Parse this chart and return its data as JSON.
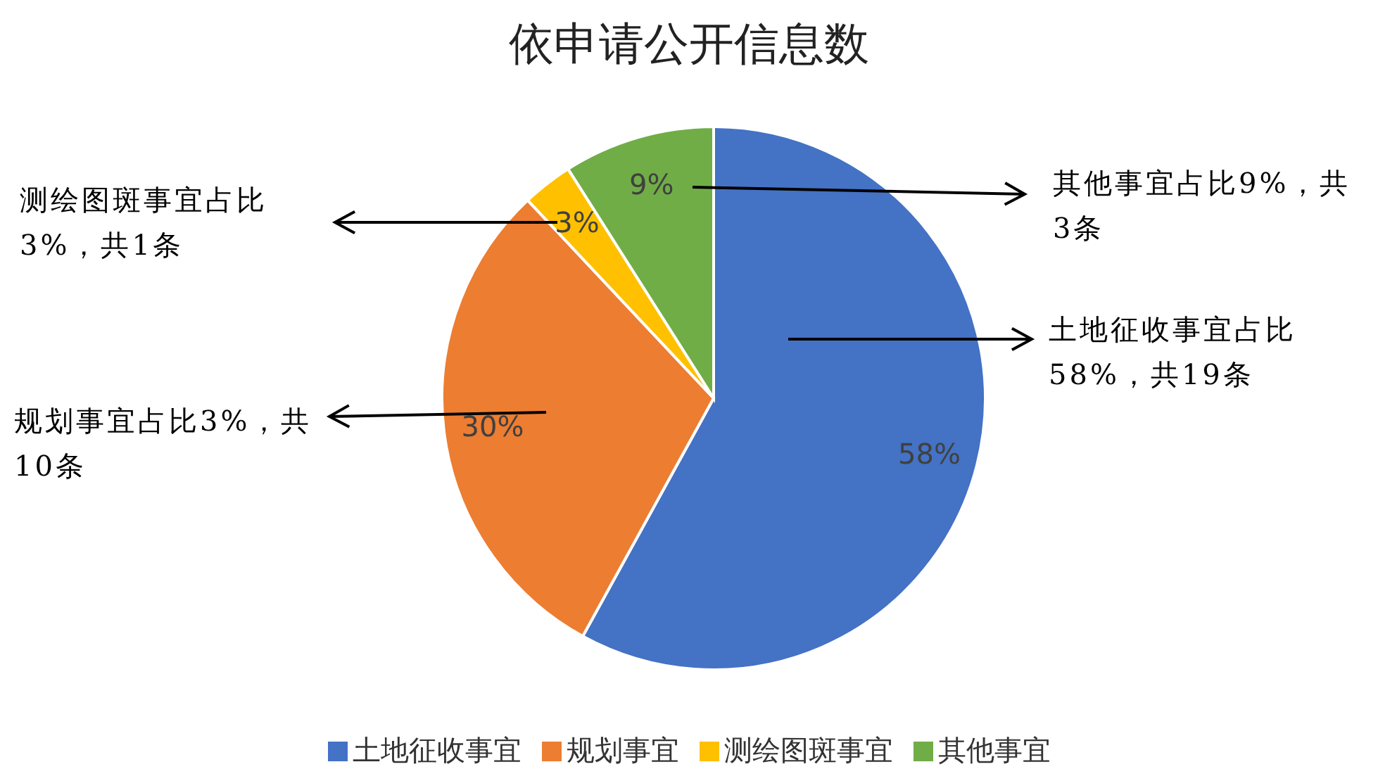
{
  "chart_data": {
    "type": "pie",
    "title": "依申请公开信息数",
    "categories": [
      "土地征收事宜",
      "规划事宜",
      "测绘图斑事宜",
      "其他事宜"
    ],
    "values": [
      58,
      30,
      3,
      9
    ],
    "colors": [
      "#4472c4",
      "#ed7d31",
      "#ffc000",
      "#70ad47"
    ],
    "value_labels": [
      "58%",
      "30%",
      "3%",
      "9%"
    ],
    "legend": "bottom",
    "annotations": [
      "土地征收事宜占比58%，共19条",
      "规划事宜占比3%，共10条",
      "测绘图斑事宜占比3%，共1条",
      "其他事宜占比9%，共3条"
    ]
  }
}
